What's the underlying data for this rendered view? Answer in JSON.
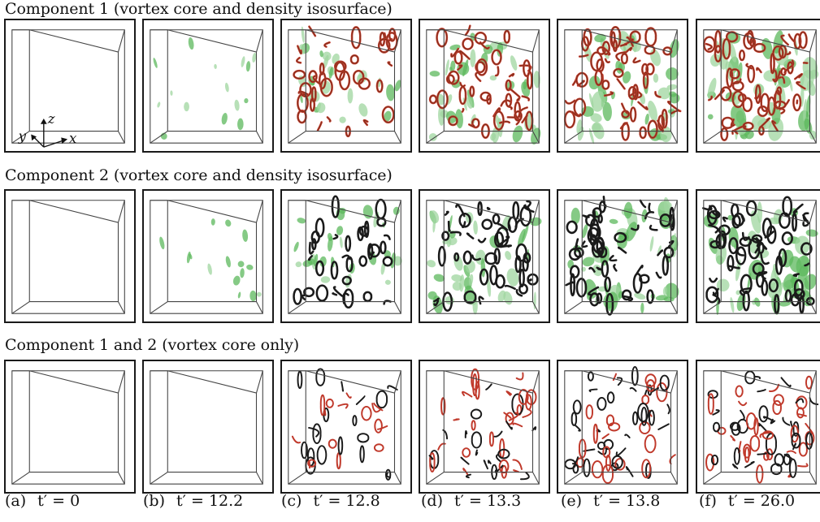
{
  "figure": {
    "rows": [
      {
        "id": "row1",
        "title": "Component 1 (vortex core and density isosurface)",
        "cores": "c1",
        "iso": true
      },
      {
        "id": "row2",
        "title": "Component 2 (vortex core and density isosurface)",
        "cores": "c2",
        "iso": true
      },
      {
        "id": "row3",
        "title": "Component 1 and 2 (vortex core only)",
        "cores": "both",
        "iso": false
      }
    ],
    "columns": [
      {
        "label": "(a)",
        "time": "t′ = 0",
        "density": 0
      },
      {
        "label": "(b)",
        "time": "t′ = 12.2",
        "density": 0.15
      },
      {
        "label": "(c)",
        "time": "t′ = 12.8",
        "density": 0.45
      },
      {
        "label": "(d)",
        "time": "t′ = 13.3",
        "density": 0.7
      },
      {
        "label": "(e)",
        "time": "t′ = 13.8",
        "density": 0.85
      },
      {
        "label": "(f)",
        "time": "t′ = 26.0",
        "density": 1.0
      }
    ],
    "axes": {
      "x": "x",
      "y": "y",
      "z": "z"
    },
    "colors": {
      "isosurface": "#5cb85c",
      "isosurface_light": "#9fd69f",
      "component1_core": "#c0392b",
      "component2_core": "#1a1a1a",
      "box_line": "#444444"
    }
  }
}
